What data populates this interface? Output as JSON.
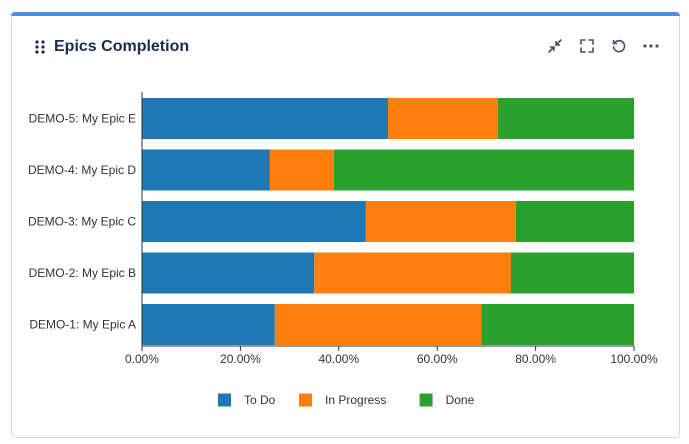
{
  "widget": {
    "title": "Epics Completion",
    "accent_color": "#4a90e2",
    "icons": [
      "drag-handle-icon",
      "collapse-icon",
      "fullscreen-icon",
      "refresh-icon",
      "more-icon"
    ]
  },
  "chart_data": {
    "type": "bar",
    "orientation": "horizontal",
    "stacked": true,
    "categories": [
      "DEMO-5: My Epic E",
      "DEMO-4: My Epic D",
      "DEMO-3: My Epic C",
      "DEMO-2: My Epic B",
      "DEMO-1: My Epic A"
    ],
    "series": [
      {
        "name": "To Do",
        "color": "#1f77b4",
        "values": [
          50,
          26,
          45.5,
          35,
          27
        ]
      },
      {
        "name": "In Progress",
        "color": "#ff7f0e",
        "values": [
          22.3,
          13,
          30.5,
          40,
          42
        ]
      },
      {
        "name": "Done",
        "color": "#2ca02c",
        "values": [
          27.7,
          61,
          24,
          25,
          31
        ]
      }
    ],
    "xlim": [
      0,
      100
    ],
    "xticks": [
      "0.00%",
      "20.00%",
      "40.00%",
      "60.00%",
      "80.00%",
      "100.00%"
    ],
    "legend_position": "bottom"
  }
}
